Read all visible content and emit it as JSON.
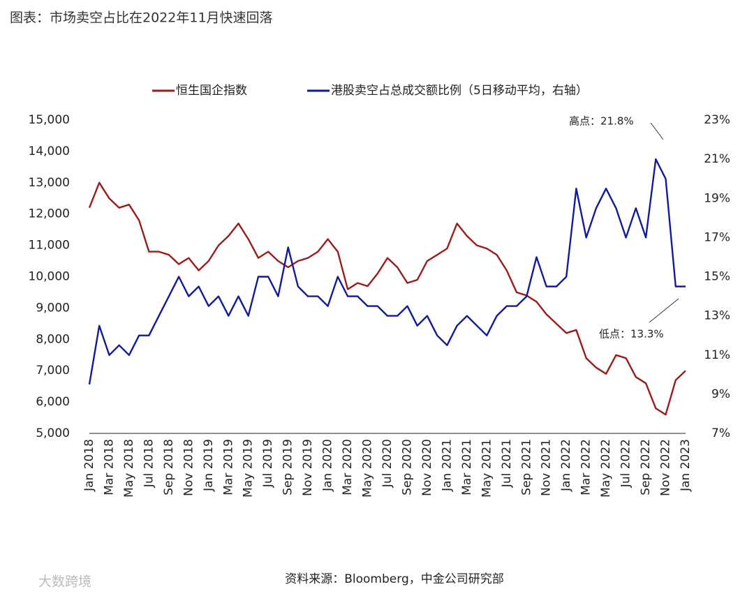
{
  "chart_data": {
    "type": "line",
    "title": "图表：市场卖空占比在2022年11月快速回落",
    "source": "资料来源：Bloomberg，中金公司研究部",
    "watermark": "大数跨境",
    "annotations": [
      "高点：21.8%",
      "低点：13.3%"
    ],
    "categories": [
      "Jan 2018",
      null,
      "Mar 2018",
      null,
      "May 2018",
      null,
      "Jul 2018",
      null,
      "Sep 2018",
      null,
      "Nov 2018",
      null,
      "Jan 2019",
      null,
      "Mar 2019",
      null,
      "May 2019",
      null,
      "Jul 2019",
      null,
      "Sep 2019",
      null,
      "Nov 2019",
      null,
      "Jan 2020",
      null,
      "Mar 2020",
      null,
      "May 2020",
      null,
      "Jul 2020",
      null,
      "Sep 2020",
      null,
      "Nov 2020",
      null,
      "Jan 2021",
      null,
      "Mar 2021",
      null,
      "May 2021",
      null,
      "Jul 2021",
      null,
      "Sep 2021",
      null,
      "Nov 2021",
      null,
      "Jan 2022",
      null,
      "Mar 2022",
      null,
      "May 2022",
      null,
      "Jul 2022",
      null,
      "Sep 2022",
      null,
      "Nov 2022",
      null,
      "Jan 2023"
    ],
    "series": [
      {
        "name": "恒生国企指数",
        "color": "#9b1b1b",
        "values": [
          12200,
          13000,
          12500,
          12200,
          12300,
          11800,
          10800,
          10800,
          10700,
          10400,
          10600,
          10200,
          10500,
          11000,
          11300,
          11700,
          11200,
          10600,
          10800,
          10500,
          10300,
          10500,
          10600,
          10800,
          11200,
          10800,
          9600,
          9800,
          9700,
          10100,
          10600,
          10300,
          9800,
          9900,
          10500,
          10700,
          10900,
          11700,
          11300,
          11000,
          10900,
          10700,
          10200,
          9500,
          9400,
          9200,
          8800,
          8500,
          8200,
          8300,
          7400,
          7100,
          6900,
          7500,
          7400,
          6800,
          6600,
          5800,
          5600,
          6700,
          7000
        ]
      },
      {
        "name": "港股卖空占总成交额比例（5日移动平均，右轴）",
        "color": "#101a9c",
        "axis": "y2",
        "values": [
          9.5,
          12.5,
          11,
          11.5,
          11,
          12,
          12,
          13,
          14,
          15,
          14,
          14.5,
          13.5,
          14,
          13,
          14,
          13,
          15,
          15,
          14,
          16.5,
          14.5,
          14,
          14,
          13.5,
          15,
          14,
          14,
          13.5,
          13.5,
          13,
          13,
          13.5,
          12.5,
          13,
          12,
          11.5,
          12.5,
          13,
          12.5,
          12,
          13,
          13.5,
          13.5,
          14,
          16,
          14.5,
          14.5,
          15,
          19.5,
          17,
          18.5,
          19.5,
          18.5,
          17,
          18.5,
          17,
          21,
          20,
          14.5,
          14.5
        ]
      }
    ],
    "ylim": [
      5000,
      15000
    ],
    "yticks": [
      {
        "value": 5000,
        "label": "5,000"
      },
      {
        "value": 6000,
        "label": "6,000"
      },
      {
        "value": 7000,
        "label": "7,000"
      },
      {
        "value": 8000,
        "label": "8,000"
      },
      {
        "value": 9000,
        "label": "9,000"
      },
      {
        "value": 10000,
        "label": "10,000"
      },
      {
        "value": 11000,
        "label": "11,000"
      },
      {
        "value": 12000,
        "label": "12,000"
      },
      {
        "value": 13000,
        "label": "13,000"
      },
      {
        "value": 14000,
        "label": "14,000"
      },
      {
        "value": 15000,
        "label": "15,000"
      }
    ],
    "y2lim": [
      7,
      23
    ],
    "y2ticks": [
      {
        "value": 7,
        "label": "7%"
      },
      {
        "value": 9,
        "label": "9%"
      },
      {
        "value": 11,
        "label": "11%"
      },
      {
        "value": 13,
        "label": "13%"
      },
      {
        "value": 15,
        "label": "15%"
      },
      {
        "value": 17,
        "label": "17%"
      },
      {
        "value": 19,
        "label": "19%"
      },
      {
        "value": 21,
        "label": "21%"
      },
      {
        "value": 23,
        "label": "23%"
      }
    ],
    "grid": false
  }
}
